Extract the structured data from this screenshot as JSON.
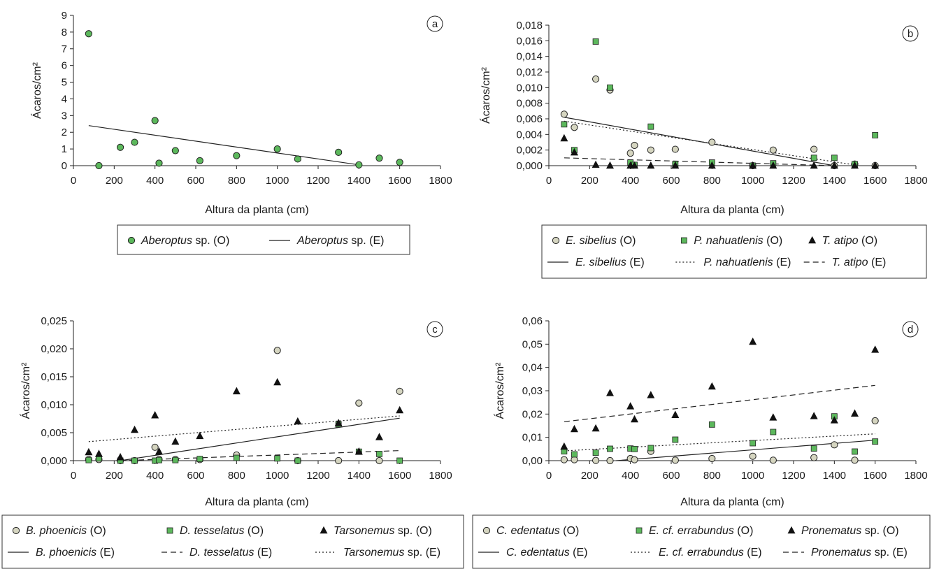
{
  "chart_data": [
    {
      "type": "scatter",
      "panel_label": "a",
      "xlabel": "Altura da planta (cm)",
      "ylabel": "Ácaros/cm²",
      "xlim": [
        0,
        1800
      ],
      "ylim": [
        0,
        9
      ],
      "x_ticks": [
        0,
        200,
        400,
        600,
        800,
        1000,
        1200,
        1400,
        1600,
        1800
      ],
      "y_ticks": [
        "0",
        "1",
        "2",
        "3",
        "4",
        "5",
        "6",
        "7",
        "8",
        "9"
      ],
      "grid": false,
      "legend_position": "bottom",
      "series": [
        {
          "species": "Aberoptus",
          "suffix": " sp. (O)",
          "kind": "observed",
          "marker": "circle",
          "fill": "#5cb85c",
          "points": [
            [
              75,
              7.9
            ],
            [
              125,
              0.0
            ],
            [
              230,
              1.1
            ],
            [
              300,
              1.4
            ],
            [
              400,
              2.7
            ],
            [
              420,
              0.15
            ],
            [
              500,
              0.9
            ],
            [
              620,
              0.3
            ],
            [
              800,
              0.6
            ],
            [
              1000,
              1.0
            ],
            [
              1100,
              0.4
            ],
            [
              1300,
              0.8
            ],
            [
              1400,
              0.05
            ],
            [
              1500,
              0.45
            ],
            [
              1600,
              0.2
            ]
          ]
        },
        {
          "species": "Aberoptus",
          "suffix": " sp. (E)",
          "kind": "fit",
          "dash": "solid",
          "points": [
            [
              75,
              2.4
            ],
            [
              1400,
              0.05
            ]
          ]
        }
      ]
    },
    {
      "type": "scatter",
      "panel_label": "b",
      "xlabel": "Altura da planta (cm)",
      "ylabel": "Ácaros/cm²",
      "xlim": [
        0,
        1800
      ],
      "ylim": [
        0,
        0.018
      ],
      "x_ticks": [
        0,
        200,
        400,
        600,
        800,
        1000,
        1200,
        1400,
        1600,
        1800
      ],
      "y_ticks": [
        "0,000",
        "0,002",
        "0,004",
        "0,006",
        "0,008",
        "0,010",
        "0,012",
        "0,014",
        "0,016",
        "0,018"
      ],
      "grid": false,
      "legend_position": "bottom",
      "series": [
        {
          "species": "E. sibelius",
          "suffix": " (O)",
          "kind": "observed",
          "marker": "circle",
          "fill": "#d5d5c0",
          "points": [
            [
              75,
              0.0066
            ],
            [
              125,
              0.0049
            ],
            [
              230,
              0.0111
            ],
            [
              300,
              0.0097
            ],
            [
              400,
              0.0016
            ],
            [
              420,
              0.0026
            ],
            [
              500,
              0.002
            ],
            [
              620,
              0.0021
            ],
            [
              800,
              0.003
            ],
            [
              1000,
              0.0
            ],
            [
              1100,
              0.002
            ],
            [
              1300,
              0.0021
            ],
            [
              1400,
              0.0
            ],
            [
              1500,
              0.0002
            ],
            [
              1600,
              0.0
            ]
          ]
        },
        {
          "species": "P. nahuatlenis",
          "suffix": " (O)",
          "kind": "observed",
          "marker": "square",
          "fill": "#5cb85c",
          "points": [
            [
              75,
              0.0053
            ],
            [
              125,
              0.002
            ],
            [
              230,
              0.0159
            ],
            [
              300,
              0.01
            ],
            [
              400,
              0.0004
            ],
            [
              420,
              0.0001
            ],
            [
              500,
              0.005
            ],
            [
              620,
              0.0002
            ],
            [
              800,
              0.0004
            ],
            [
              1000,
              0.0
            ],
            [
              1100,
              0.0003
            ],
            [
              1300,
              0.001
            ],
            [
              1400,
              0.001
            ],
            [
              1500,
              0.0002
            ],
            [
              1600,
              0.0039
            ]
          ]
        },
        {
          "species": "T. atipo",
          "suffix": " (O)",
          "kind": "observed",
          "marker": "triangle",
          "fill": "#111111",
          "points": [
            [
              75,
              0.0035
            ],
            [
              125,
              0.0017
            ],
            [
              230,
              0.0001
            ],
            [
              300,
              0.0
            ],
            [
              400,
              0.0
            ],
            [
              420,
              0.0
            ],
            [
              500,
              0.0
            ],
            [
              620,
              0.0
            ],
            [
              800,
              0.0
            ],
            [
              1000,
              0.0
            ],
            [
              1100,
              0.0
            ],
            [
              1300,
              0.0
            ],
            [
              1400,
              0.0
            ],
            [
              1500,
              0.0
            ],
            [
              1600,
              0.0
            ]
          ]
        },
        {
          "species": "E. sibelius",
          "suffix": " (E)",
          "kind": "fit",
          "dash": "solid",
          "points": [
            [
              75,
              0.0062
            ],
            [
              1400,
              0.0
            ]
          ]
        },
        {
          "species": "P. nahuatlenis",
          "suffix": " (E)",
          "kind": "fit",
          "dash": "dotted",
          "points": [
            [
              75,
              0.0057
            ],
            [
              1500,
              0.0001
            ]
          ]
        },
        {
          "species": "T. atipo",
          "suffix": " (E)",
          "kind": "fit",
          "dash": "dashed",
          "points": [
            [
              75,
              0.001
            ],
            [
              1400,
              0.0
            ]
          ]
        }
      ]
    },
    {
      "type": "scatter",
      "panel_label": "c",
      "xlabel": "Altura da planta (cm)",
      "ylabel": "Ácaros/cm²",
      "xlim": [
        0,
        1800
      ],
      "ylim": [
        0,
        0.025
      ],
      "x_ticks": [
        0,
        200,
        400,
        600,
        800,
        1000,
        1200,
        1400,
        1600,
        1800
      ],
      "y_ticks": [
        "0,000",
        "0,005",
        "0,010",
        "0,015",
        "0,020",
        "0,025"
      ],
      "grid": false,
      "legend_position": "bottom",
      "series": [
        {
          "species": "B. phoenicis",
          "suffix": " (O)",
          "kind": "observed",
          "marker": "circle",
          "fill": "#d5d5c0",
          "points": [
            [
              75,
              0.0002
            ],
            [
              125,
              0.0002
            ],
            [
              230,
              0.0
            ],
            [
              300,
              0.0
            ],
            [
              400,
              0.0024
            ],
            [
              420,
              0.0002
            ],
            [
              500,
              0.0002
            ],
            [
              620,
              0.0002
            ],
            [
              800,
              0.001
            ],
            [
              1000,
              0.0197
            ],
            [
              1100,
              0.0
            ],
            [
              1300,
              0.0
            ],
            [
              1400,
              0.0103
            ],
            [
              1500,
              0.0
            ],
            [
              1600,
              0.0124
            ]
          ]
        },
        {
          "species": "D. tesselatus",
          "suffix": " (O)",
          "kind": "observed",
          "marker": "square",
          "fill": "#5cb85c",
          "points": [
            [
              75,
              0.0001
            ],
            [
              125,
              0.0004
            ],
            [
              230,
              0.0
            ],
            [
              300,
              0.0
            ],
            [
              400,
              0.0
            ],
            [
              420,
              0.0001
            ],
            [
              500,
              0.0001
            ],
            [
              620,
              0.0003
            ],
            [
              800,
              0.0005
            ],
            [
              1000,
              0.0004
            ],
            [
              1100,
              0.0
            ],
            [
              1300,
              0.0065
            ],
            [
              1400,
              0.0016
            ],
            [
              1500,
              0.0012
            ],
            [
              1600,
              0.0
            ]
          ]
        },
        {
          "species": "Tarsonemus",
          "suffix": " sp. (O)",
          "kind": "observed",
          "marker": "triangle",
          "fill": "#111111",
          "points": [
            [
              75,
              0.0015
            ],
            [
              125,
              0.0012
            ],
            [
              230,
              0.0006
            ],
            [
              300,
              0.0055
            ],
            [
              400,
              0.0081
            ],
            [
              420,
              0.0016
            ],
            [
              500,
              0.0034
            ],
            [
              620,
              0.0044
            ],
            [
              800,
              0.0124
            ],
            [
              1000,
              0.014
            ],
            [
              1100,
              0.007
            ],
            [
              1300,
              0.0067
            ],
            [
              1400,
              0.0016
            ],
            [
              1500,
              0.0042
            ],
            [
              1600,
              0.009
            ]
          ]
        },
        {
          "species": "B. phoenicis",
          "suffix": " (E)",
          "kind": "fit",
          "dash": "solid",
          "points": [
            [
              230,
              0.0
            ],
            [
              1600,
              0.0076
            ]
          ]
        },
        {
          "species": "D. tesselatus",
          "suffix": " (E)",
          "kind": "fit",
          "dash": "dashed",
          "points": [
            [
              230,
              0.0
            ],
            [
              1600,
              0.0018
            ]
          ]
        },
        {
          "species": "Tarsonemus",
          "suffix": " sp. (E)",
          "kind": "fit",
          "dash": "dotted",
          "points": [
            [
              75,
              0.0034
            ],
            [
              1600,
              0.008
            ]
          ]
        }
      ]
    },
    {
      "type": "scatter",
      "panel_label": "d",
      "xlabel": "Altura da planta (cm)",
      "ylabel": "Ácaros/cm²",
      "xlim": [
        0,
        1800
      ],
      "ylim": [
        0,
        0.06
      ],
      "x_ticks": [
        0,
        200,
        400,
        600,
        800,
        1000,
        1200,
        1400,
        1600,
        1800
      ],
      "y_ticks": [
        "0,00",
        "0,01",
        "0,02",
        "0,03",
        "0,04",
        "0,05",
        "0,06"
      ],
      "grid": false,
      "legend_position": "bottom",
      "series": [
        {
          "species": "C. edentatus",
          "suffix": " (O)",
          "kind": "observed",
          "marker": "circle",
          "fill": "#d5d5c0",
          "points": [
            [
              75,
              0.0004
            ],
            [
              125,
              0.0004
            ],
            [
              230,
              0.0001
            ],
            [
              300,
              0.0
            ],
            [
              400,
              0.0009
            ],
            [
              420,
              0.0004
            ],
            [
              500,
              0.004
            ],
            [
              620,
              0.0002
            ],
            [
              800,
              0.0009
            ],
            [
              1000,
              0.0019
            ],
            [
              1100,
              0.0002
            ],
            [
              1300,
              0.0013
            ],
            [
              1400,
              0.0068
            ],
            [
              1500,
              0.0002
            ],
            [
              1600,
              0.0171
            ]
          ]
        },
        {
          "species": "E. cf. errabundus",
          "suffix": " (O)",
          "kind": "observed",
          "marker": "square",
          "fill": "#5cb85c",
          "points": [
            [
              75,
              0.004
            ],
            [
              125,
              0.0027
            ],
            [
              230,
              0.0034
            ],
            [
              300,
              0.0051
            ],
            [
              400,
              0.0052
            ],
            [
              420,
              0.005
            ],
            [
              500,
              0.0054
            ],
            [
              620,
              0.009
            ],
            [
              800,
              0.0155
            ],
            [
              1000,
              0.0075
            ],
            [
              1100,
              0.0123
            ],
            [
              1300,
              0.0052
            ],
            [
              1400,
              0.019
            ],
            [
              1500,
              0.0039
            ],
            [
              1600,
              0.0082
            ]
          ]
        },
        {
          "species": "Pronematus",
          "suffix": " sp. (O)",
          "kind": "observed",
          "marker": "triangle",
          "fill": "#111111",
          "points": [
            [
              75,
              0.006
            ],
            [
              125,
              0.0135
            ],
            [
              230,
              0.0138
            ],
            [
              300,
              0.029
            ],
            [
              400,
              0.0233
            ],
            [
              420,
              0.0177
            ],
            [
              500,
              0.0281
            ],
            [
              620,
              0.0196
            ],
            [
              800,
              0.0318
            ],
            [
              1000,
              0.051
            ],
            [
              1100,
              0.0185
            ],
            [
              1300,
              0.0191
            ],
            [
              1400,
              0.0173
            ],
            [
              1500,
              0.0202
            ],
            [
              1600,
              0.0476
            ]
          ]
        },
        {
          "species": "C. edentatus",
          "suffix": " (E)",
          "kind": "fit",
          "dash": "solid",
          "points": [
            [
              330,
              0.0
            ],
            [
              1600,
              0.0088
            ]
          ]
        },
        {
          "species": "E. cf. errabundus",
          "suffix": " (E)",
          "kind": "fit",
          "dash": "dotted",
          "points": [
            [
              75,
              0.0042
            ],
            [
              1600,
              0.0115
            ]
          ]
        },
        {
          "species": "Pronematus",
          "suffix": " sp. (E)",
          "kind": "fit",
          "dash": "dashed",
          "points": [
            [
              75,
              0.0167
            ],
            [
              1600,
              0.0323
            ]
          ]
        }
      ]
    }
  ]
}
